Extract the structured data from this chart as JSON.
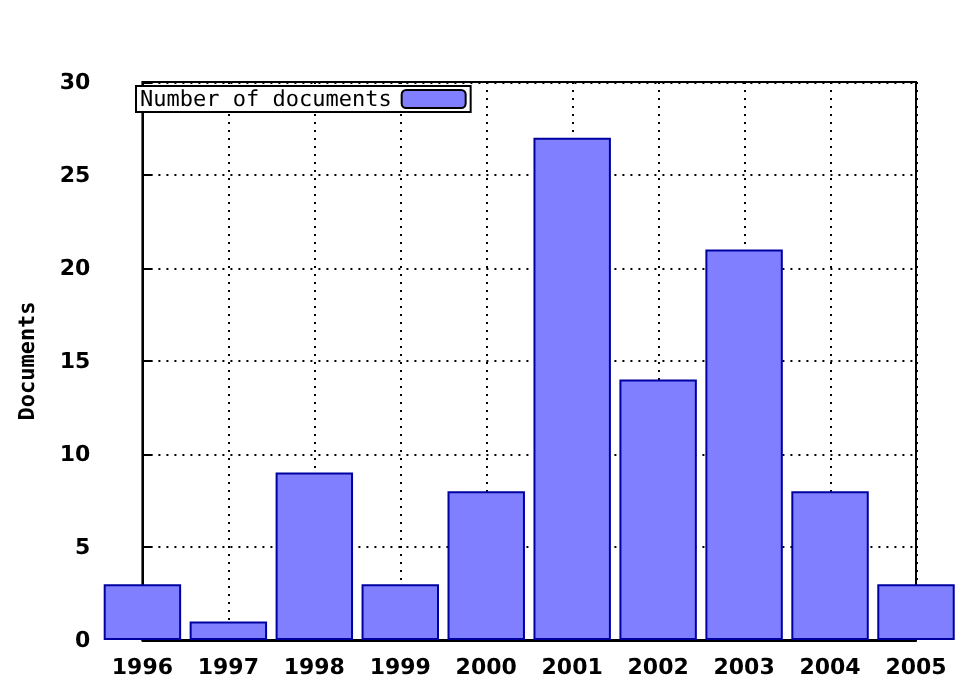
{
  "chart_data": {
    "type": "bar",
    "ylabel": "Documents",
    "x": [
      1996,
      1997,
      1998,
      1999,
      2000,
      2001,
      2002,
      2003,
      2004,
      2005
    ],
    "series": [
      {
        "name": "Number of documents",
        "color": "#7f7fff",
        "values": [
          3,
          1,
          9,
          3,
          8,
          27,
          14,
          21,
          8,
          3
        ]
      }
    ],
    "xlim": [
      1996,
      2005
    ],
    "xticks": [
      1996,
      1997,
      1998,
      1999,
      2000,
      2001,
      2002,
      2003,
      2004,
      2005
    ],
    "ylim": [
      0,
      30
    ],
    "yticks": [
      0,
      5,
      10,
      15,
      20,
      25,
      30
    ],
    "grid": true,
    "legend": "top left"
  }
}
